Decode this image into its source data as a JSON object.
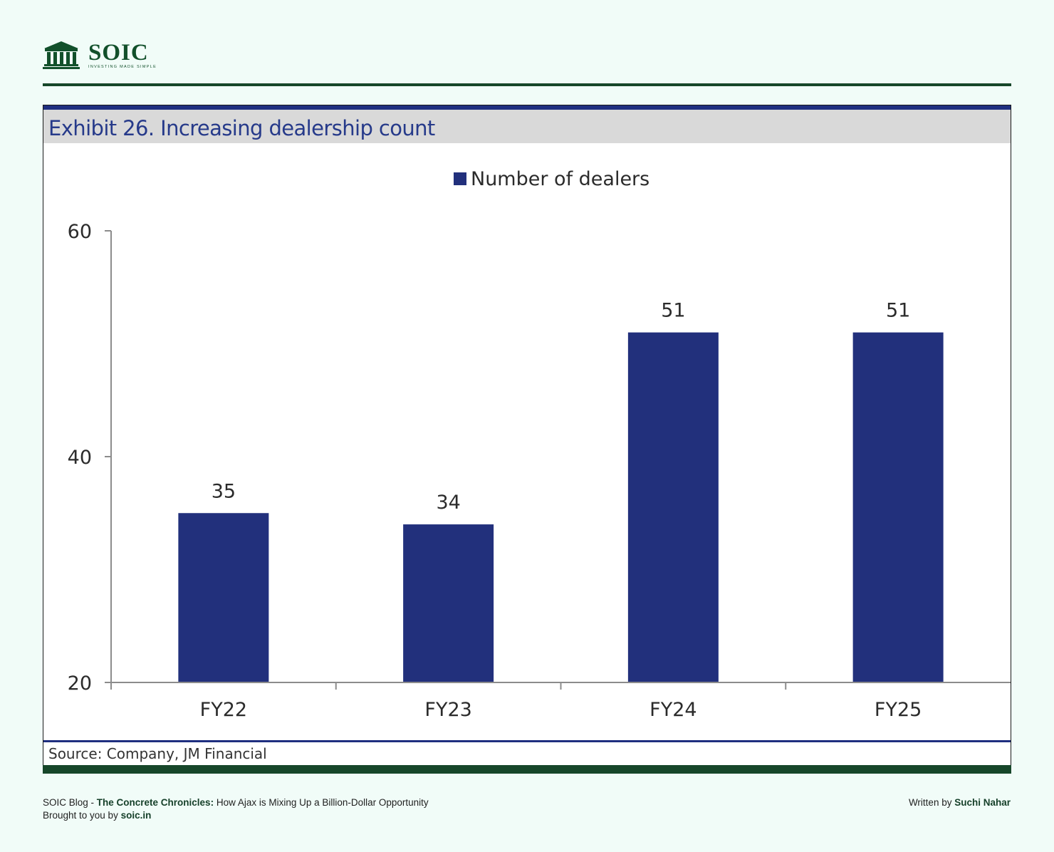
{
  "header": {
    "logo_name": "SOIC",
    "logo_tagline": "INVESTING MADE SIMPLE",
    "logo_icon": "bank-building-icon"
  },
  "exhibit": {
    "title": "Exhibit 26. Increasing dealership count",
    "source": "Source: Company, JM Financial"
  },
  "chart_data": {
    "type": "bar",
    "title": "Exhibit 26. Increasing dealership count",
    "categories": [
      "FY22",
      "FY23",
      "FY24",
      "FY25"
    ],
    "series": [
      {
        "name": "Number of dealers",
        "values": [
          35,
          34,
          51,
          51
        ],
        "color": "#22307c"
      }
    ],
    "ylim": [
      20,
      60
    ],
    "yticks": [
      20,
      40,
      60
    ],
    "data_labels": true,
    "legend": "top-center",
    "grid": false,
    "xlabel": "",
    "ylabel": ""
  },
  "footer": {
    "blog_prefix": "SOIC Blog - ",
    "blog_series": "The Concrete Chronicles:",
    "blog_title": " How Ajax is Mixing Up a Billion-Dollar Opportunity",
    "brought_prefix": "Brought to you by ",
    "brought_site": "soic.in",
    "written_prefix": "Written by ",
    "author": "Suchi Nahar"
  },
  "colors": {
    "brand_green": "#17472a",
    "bar_blue": "#22307c",
    "title_blue": "#263a8a",
    "page_bg": "#f1fcf8"
  }
}
